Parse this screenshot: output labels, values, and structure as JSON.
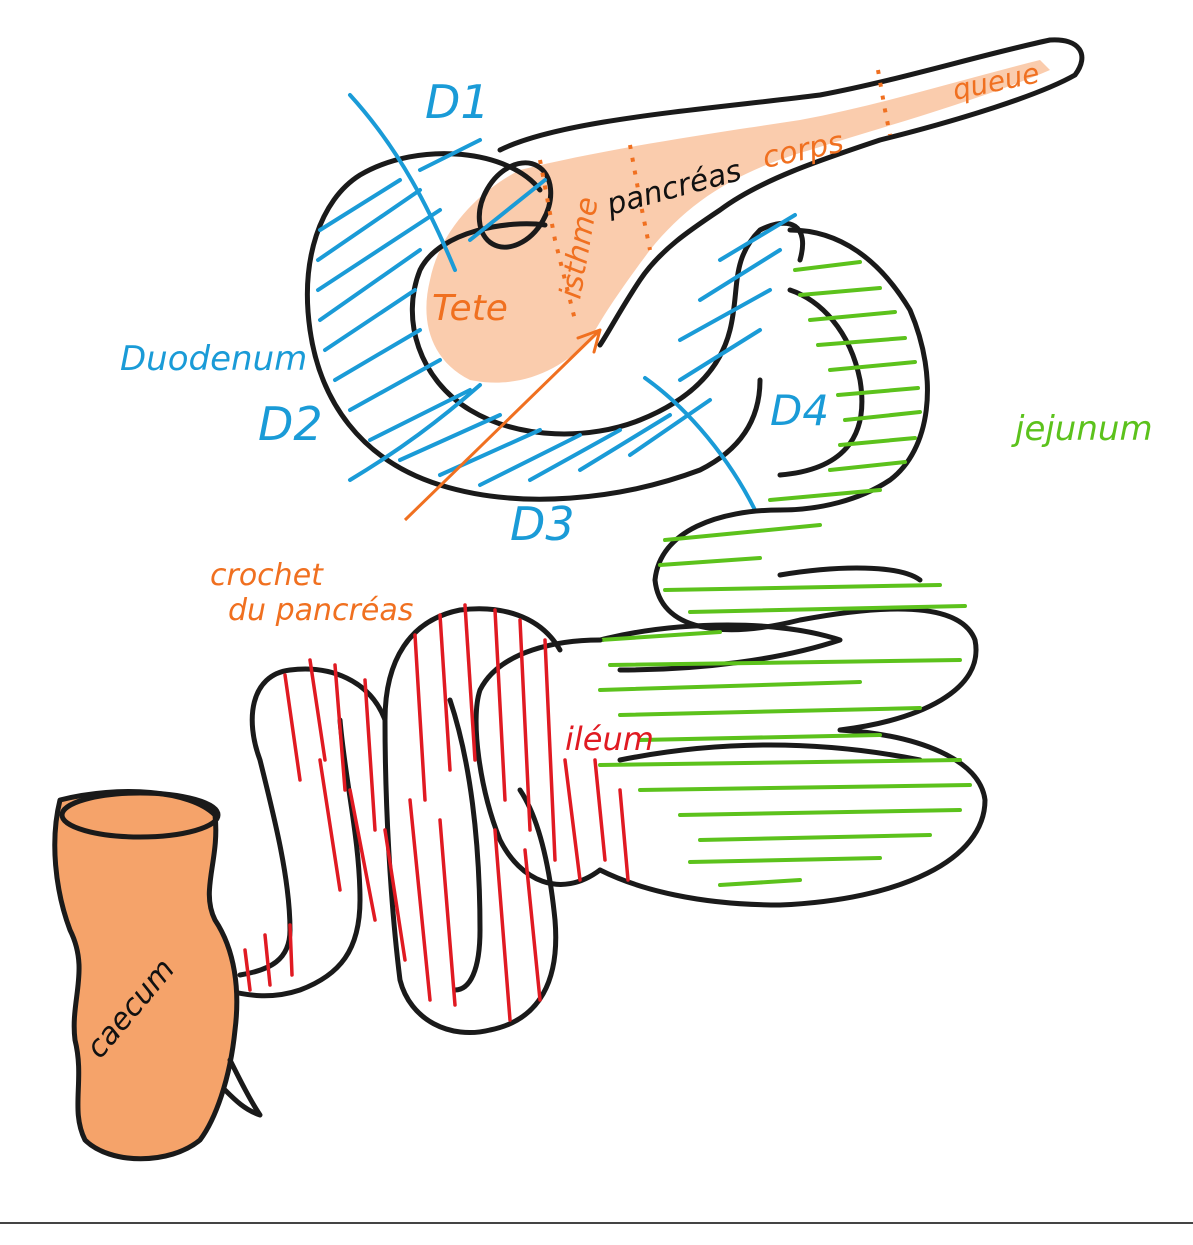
{
  "labels": {
    "d1": "D1",
    "d2": "D2",
    "d3": "D3",
    "d4": "D4",
    "duodenum": "Duodenum",
    "tete": "Tete",
    "isthme": "isthme",
    "pancreas": "pancréas",
    "corps": "corps",
    "queue": "queue",
    "jejunum": "jejunum",
    "crochet_line1": "crochet",
    "crochet_line2": "du pancréas",
    "ileum": "iléum",
    "caecum": "caecum"
  },
  "colors": {
    "duodenum": "#1a9bd7",
    "pancreas": "#f07020",
    "jejunum": "#5cc21c",
    "ileum": "#e01a22",
    "outline": "#1a1a1a"
  }
}
